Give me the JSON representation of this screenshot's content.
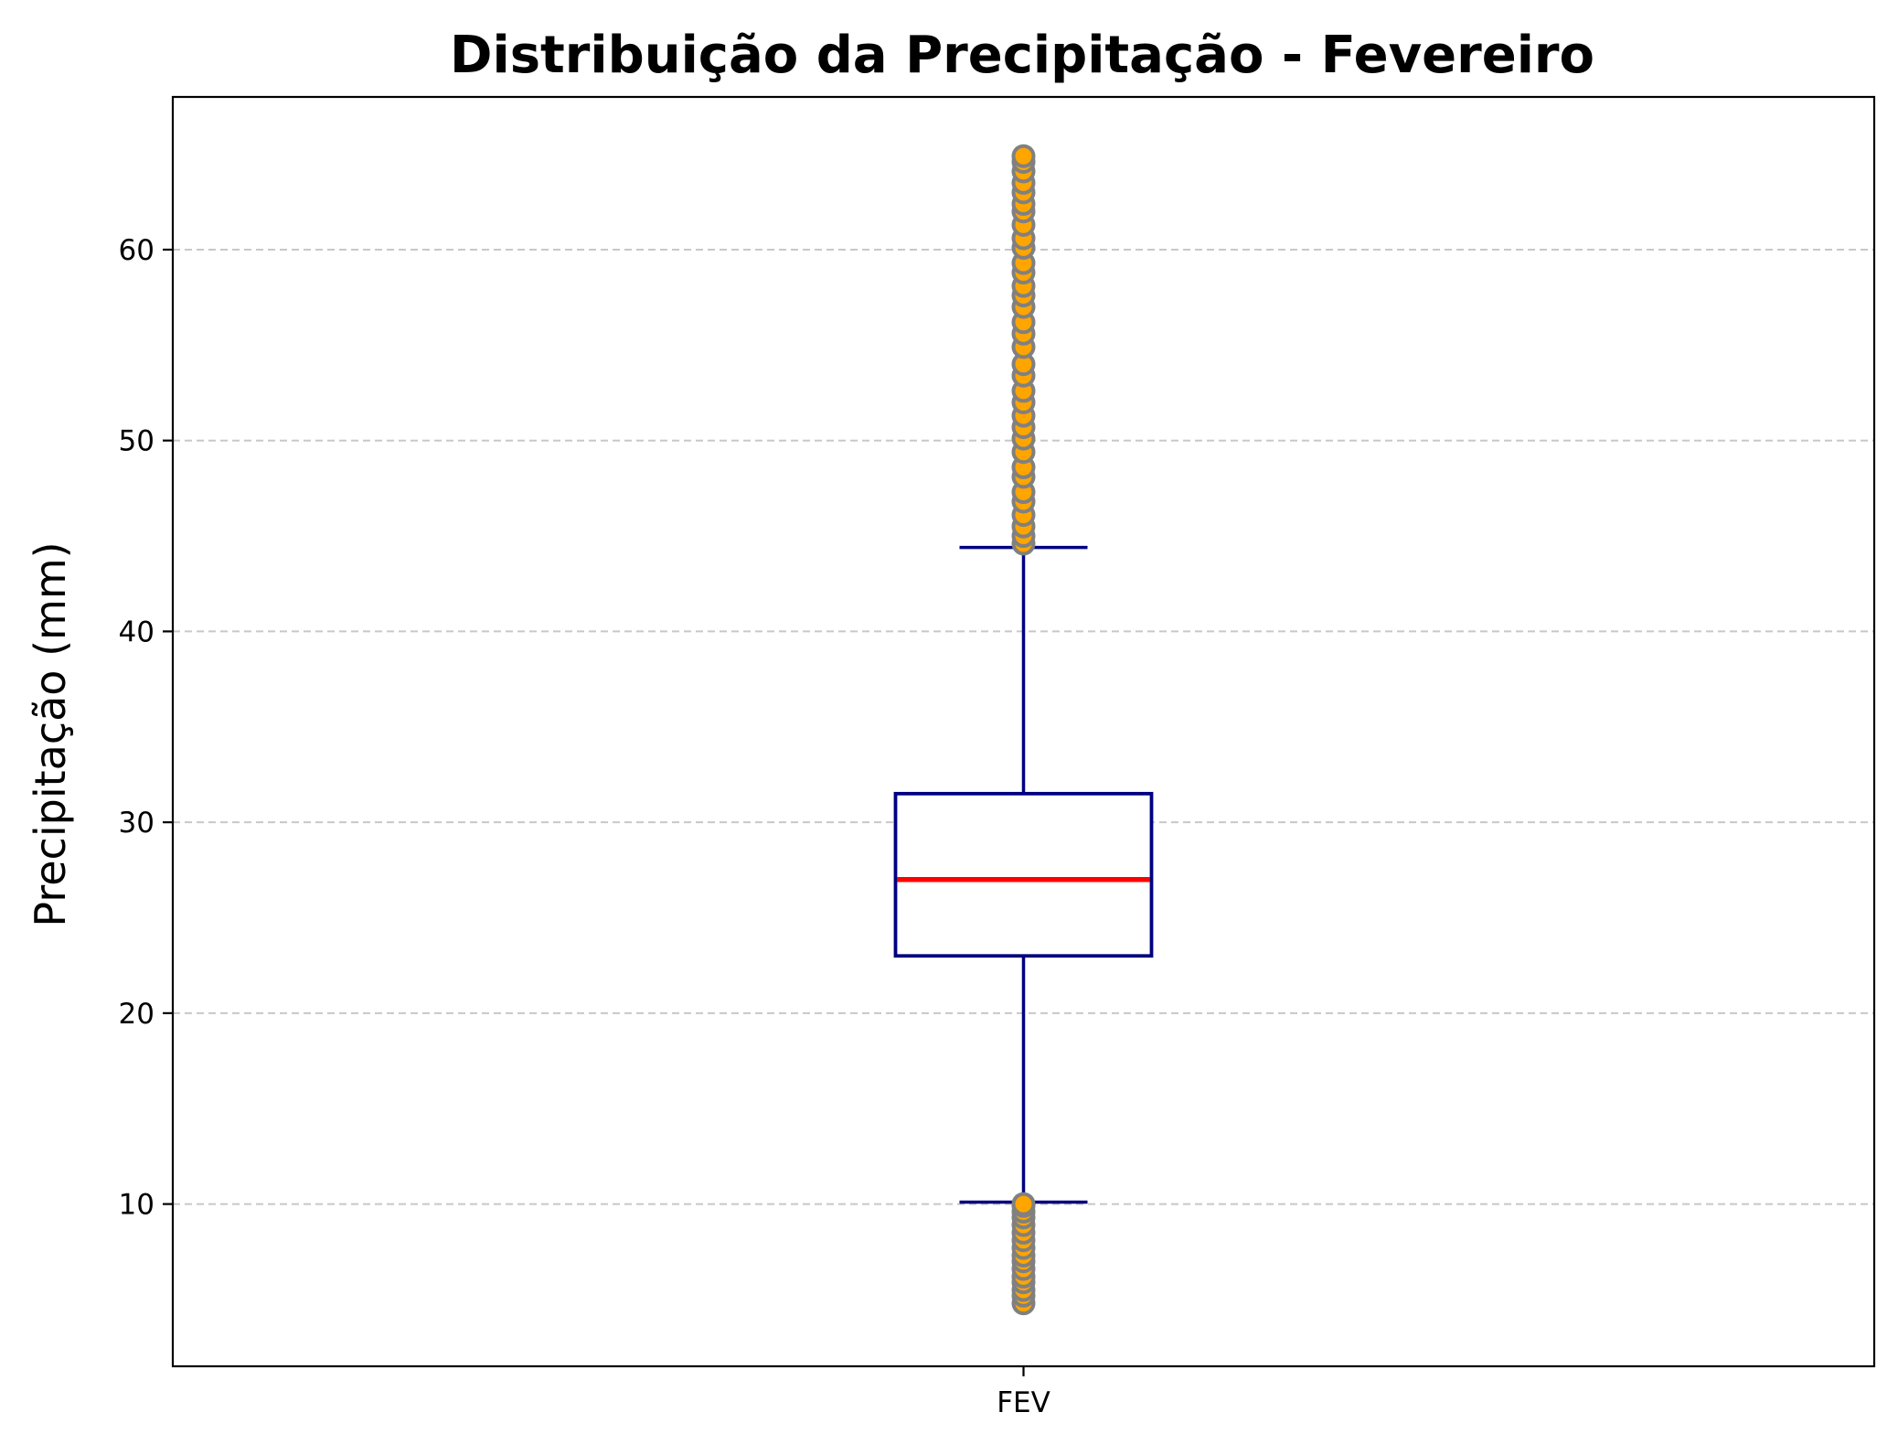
{
  "chart_data": {
    "type": "boxplot",
    "title": "Distribuição da Precipitação - Fevereiro",
    "xlabel": "",
    "ylabel": "Precipitação (mm)",
    "ylim": [
      1.5,
      68.0
    ],
    "yticks": [
      10,
      20,
      30,
      40,
      50,
      60
    ],
    "ytick_labels": [
      "10",
      "20",
      "30",
      "40",
      "50",
      "60"
    ],
    "grid": "y-dashed",
    "categories": [
      "FEV"
    ],
    "box": {
      "whisker_low": 10.1,
      "q1": 23.0,
      "median": 27.0,
      "q3": 31.5,
      "whisker_high": 44.4
    },
    "outliers": [
      4.8,
      5.2,
      5.5,
      5.9,
      6.2,
      6.6,
      7.0,
      7.3,
      7.7,
      8.1,
      8.5,
      8.9,
      9.3,
      9.6,
      9.9,
      10.0,
      44.6,
      45.0,
      45.5,
      46.1,
      46.8,
      47.3,
      48.1,
      48.6,
      49.4,
      50.1,
      50.7,
      51.3,
      52.0,
      52.6,
      53.4,
      54.0,
      54.9,
      55.6,
      56.2,
      57.0,
      57.6,
      58.1,
      58.8,
      59.3,
      60.1,
      60.6,
      61.3,
      62.0,
      62.4,
      63.0,
      63.5,
      64.1,
      64.6,
      64.9
    ],
    "colors": {
      "box_edge": "#000080",
      "median": "#ff0000",
      "outlier_face": "#ffa500",
      "outlier_edge": "#808080",
      "grid": "#c8c8c8",
      "axes": "#000000"
    }
  }
}
